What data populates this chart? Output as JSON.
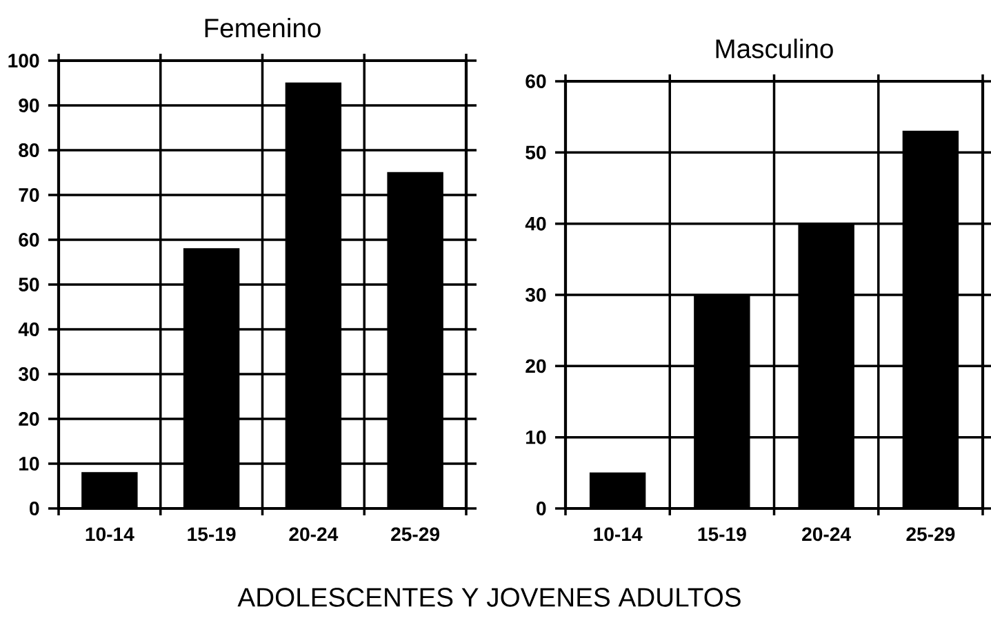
{
  "chart_data": [
    {
      "type": "bar",
      "title": "Femenino",
      "xlabel": "ADOLESCENTES Y JOVENES ADULTOS",
      "categories": [
        "10-14",
        "15-19",
        "20-24",
        "25-29"
      ],
      "values": [
        8,
        58,
        95,
        75
      ],
      "color": "#000000",
      "ylim": [
        0,
        100
      ],
      "yticks": [
        0,
        10,
        20,
        30,
        40,
        50,
        60,
        70,
        80,
        90,
        100
      ],
      "grid": true
    },
    {
      "type": "bar",
      "title": "Masculino",
      "categories": [
        "10-14",
        "15-19",
        "20-24",
        "25-29"
      ],
      "values": [
        5,
        30,
        40,
        53
      ],
      "color": "#000000",
      "ylim": [
        0,
        60
      ],
      "yticks": [
        0,
        10,
        20,
        30,
        40,
        50,
        60
      ],
      "grid": true
    }
  ]
}
